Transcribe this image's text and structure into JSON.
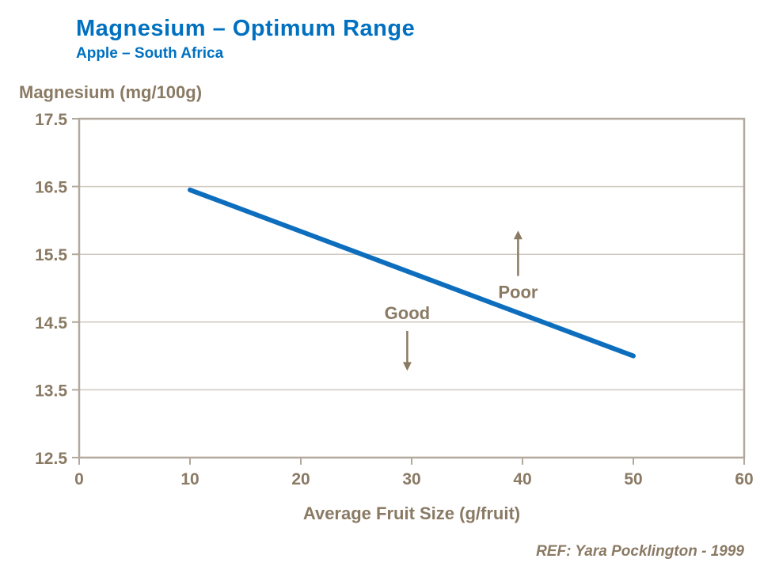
{
  "header": {
    "title": "Magnesium – Optimum Range",
    "subtitle": "Apple – South Africa"
  },
  "footer": {
    "ref": "REF: Yara Pocklington - 1999"
  },
  "colors": {
    "title_blue": "#0070C0",
    "line_blue": "#0D6EBE",
    "text_brown": "#8A7A64",
    "grid": "#CFC8BE",
    "axis": "#B2A99C"
  },
  "chart_data": {
    "type": "line",
    "title": "Magnesium – Optimum Range",
    "subtitle": "Apple – South Africa",
    "ylabel": "Magnesium (mg/100g)",
    "xlabel": "Average Fruit Size (g/fruit)",
    "xlim": [
      0,
      60
    ],
    "ylim": [
      12.5,
      17.5
    ],
    "xticks": [
      0,
      10,
      20,
      30,
      40,
      50,
      60
    ],
    "yticks": [
      12.5,
      13.5,
      14.5,
      15.5,
      16.5,
      17.5
    ],
    "grid": "horizontal",
    "legend": "none",
    "series": [
      {
        "name": "Magnesium optimum range",
        "x": [
          10,
          50
        ],
        "y": [
          16.45,
          14.0
        ],
        "color": "#0D6EBE",
        "width": 6
      }
    ],
    "annotations": [
      {
        "label": "Good",
        "x": 29.6,
        "label_y": 14.64,
        "arrow": {
          "direction": "down",
          "from_y": 14.37,
          "to_y": 13.78
        }
      },
      {
        "label": "Poor",
        "x": 39.6,
        "label_y": 14.95,
        "arrow": {
          "direction": "up",
          "from_y": 15.18,
          "to_y": 15.85
        }
      }
    ]
  }
}
